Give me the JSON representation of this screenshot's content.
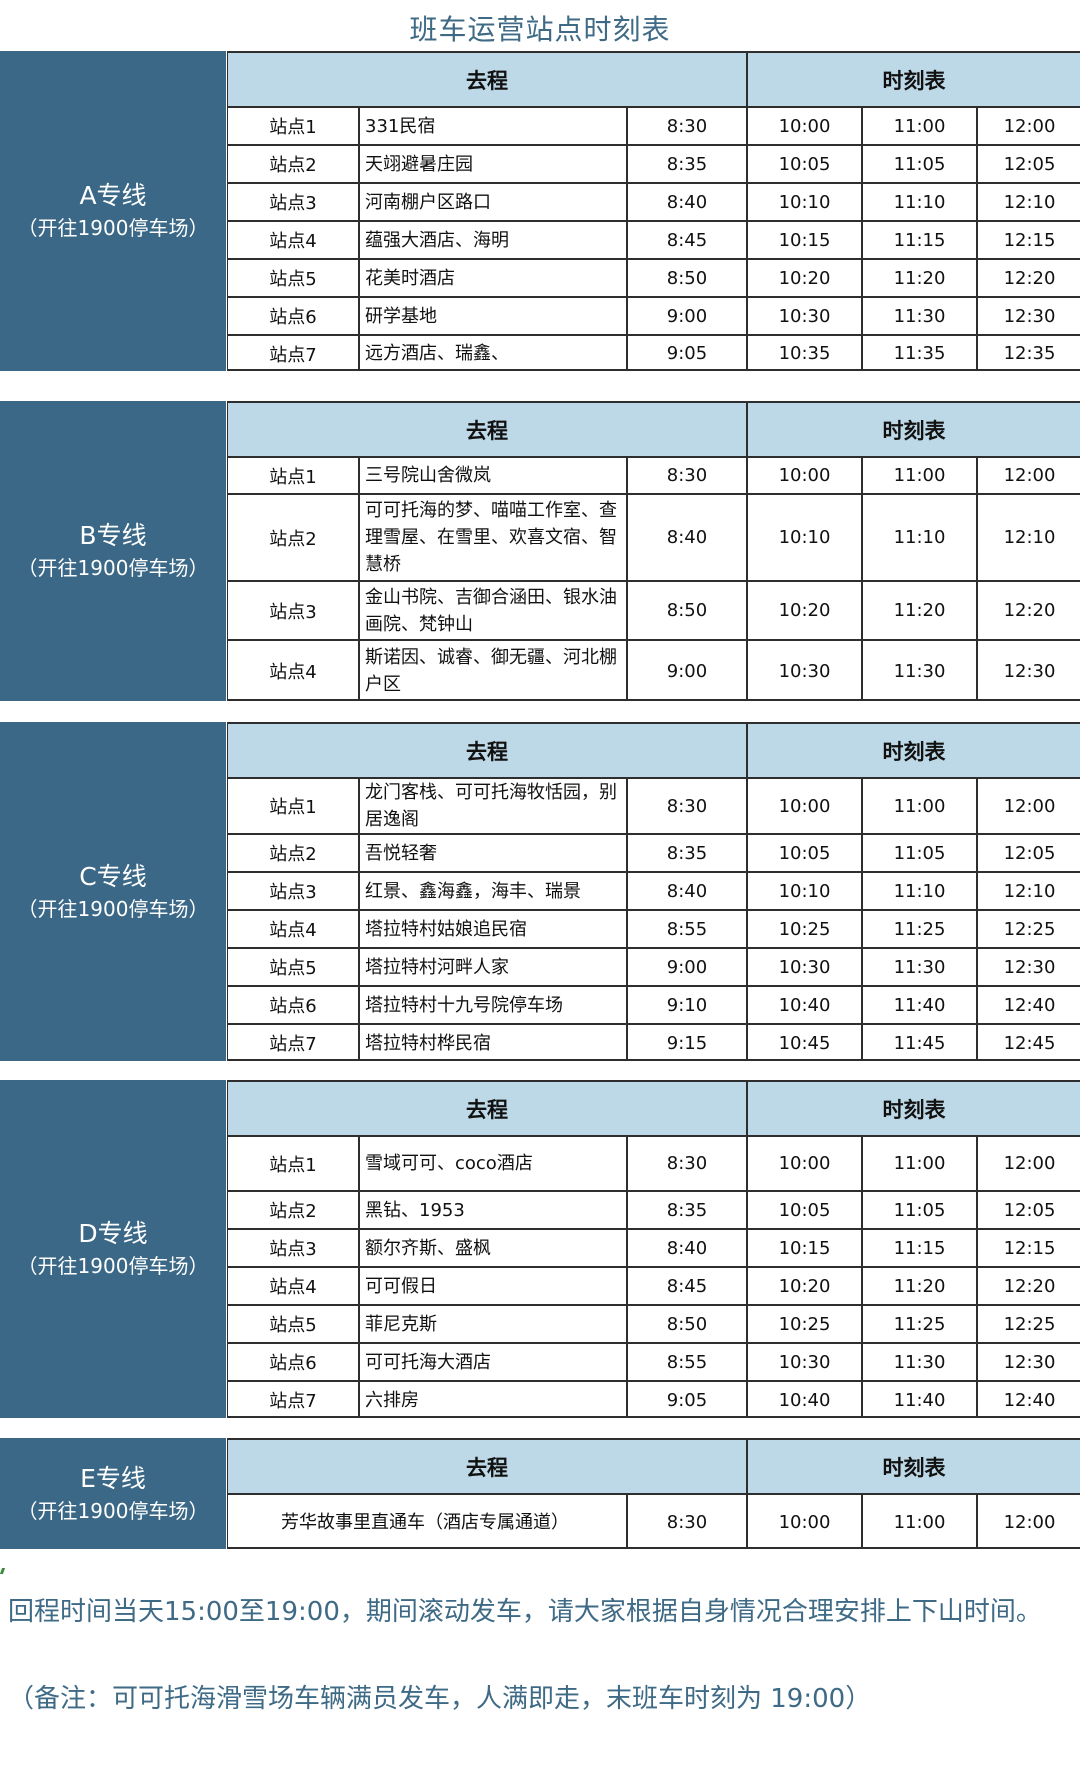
{
  "title": "班车运营站点时刻表",
  "header": {
    "route": "去程",
    "schedule": "时刻表"
  },
  "colors": {
    "panel": "#3b6886",
    "header_bg": "#bdd8e6",
    "text_accent": "#3e6a86"
  },
  "lines": [
    {
      "name": "A专线",
      "sub": "（开往1900停车场）",
      "stops": [
        {
          "stop": "站点1",
          "place": "331民宿",
          "times": [
            "8:30",
            "10:00",
            "11:00",
            "12:00"
          ]
        },
        {
          "stop": "站点2",
          "place": "天翊避暑庄园",
          "times": [
            "8:35",
            "10:05",
            "11:05",
            "12:05"
          ]
        },
        {
          "stop": "站点3",
          "place": "河南棚户区路口",
          "times": [
            "8:40",
            "10:10",
            "11:10",
            "12:10"
          ]
        },
        {
          "stop": "站点4",
          "place": "蕴强大酒店、海明",
          "times": [
            "8:45",
            "10:15",
            "11:15",
            "12:15"
          ]
        },
        {
          "stop": "站点5",
          "place": "花美时酒店",
          "times": [
            "8:50",
            "10:20",
            "11:20",
            "12:20"
          ]
        },
        {
          "stop": "站点6",
          "place": "研学基地",
          "times": [
            "9:00",
            "10:30",
            "11:30",
            "12:30"
          ]
        },
        {
          "stop": "站点7",
          "place": "远方酒店、瑞鑫、",
          "times": [
            "9:05",
            "10:35",
            "11:35",
            "12:35"
          ]
        }
      ]
    },
    {
      "name": "B专线",
      "sub": "（开往1900停车场）",
      "stops": [
        {
          "stop": "站点1",
          "place": "三号院山舍微岚",
          "times": [
            "8:30",
            "10:00",
            "11:00",
            "12:00"
          ]
        },
        {
          "stop": "站点2",
          "place": "可可托海的梦、喵喵工作室、查理雪屋、在雪里、欢喜文宿、智慧桥",
          "times": [
            "8:40",
            "10:10",
            "11:10",
            "12:10"
          ]
        },
        {
          "stop": "站点3",
          "place": "金山书院、吉御合涵田、银水油画院、梵钟山",
          "times": [
            "8:50",
            "10:20",
            "11:20",
            "12:20"
          ]
        },
        {
          "stop": "站点4",
          "place": "斯诺因、诚睿、御无疆、河北棚户区",
          "times": [
            "9:00",
            "10:30",
            "11:30",
            "12:30"
          ]
        }
      ]
    },
    {
      "name": "C专线",
      "sub": "（开往1900停车场）",
      "stops": [
        {
          "stop": "站点1",
          "place": "龙门客栈、可可托海牧恬园，别居逸阁",
          "times": [
            "8:30",
            "10:00",
            "11:00",
            "12:00"
          ]
        },
        {
          "stop": "站点2",
          "place": "吾悦轻奢",
          "times": [
            "8:35",
            "10:05",
            "11:05",
            "12:05"
          ]
        },
        {
          "stop": "站点3",
          "place": "红景、鑫海鑫，海丰、瑞景",
          "times": [
            "8:40",
            "10:10",
            "11:10",
            "12:10"
          ]
        },
        {
          "stop": "站点4",
          "place": "塔拉特村姑娘追民宿",
          "times": [
            "8:55",
            "10:25",
            "11:25",
            "12:25"
          ]
        },
        {
          "stop": "站点5",
          "place": "塔拉特村河畔人家",
          "times": [
            "9:00",
            "10:30",
            "11:30",
            "12:30"
          ]
        },
        {
          "stop": "站点6",
          "place": "塔拉特村十九号院停车场",
          "times": [
            "9:10",
            "10:40",
            "11:40",
            "12:40"
          ]
        },
        {
          "stop": "站点7",
          "place": "塔拉特村桦民宿",
          "times": [
            "9:15",
            "10:45",
            "11:45",
            "12:45"
          ]
        }
      ]
    },
    {
      "name": "D专线",
      "sub": "（开往1900停车场）",
      "stops": [
        {
          "stop": "站点1",
          "place": "雪域可可、coco酒店",
          "times": [
            "8:30",
            "10:00",
            "11:00",
            "12:00"
          ]
        },
        {
          "stop": "站点2",
          "place": "黑钻、1953",
          "times": [
            "8:35",
            "10:05",
            "11:05",
            "12:05"
          ]
        },
        {
          "stop": "站点3",
          "place": "额尔齐斯、盛枫",
          "times": [
            "8:40",
            "10:15",
            "11:15",
            "12:15"
          ]
        },
        {
          "stop": "站点4",
          "place": "可可假日",
          "times": [
            "8:45",
            "10:20",
            "11:20",
            "12:20"
          ]
        },
        {
          "stop": "站点5",
          "place": "菲尼克斯",
          "times": [
            "8:50",
            "10:25",
            "11:25",
            "12:25"
          ]
        },
        {
          "stop": "站点6",
          "place": "可可托海大酒店",
          "times": [
            "8:55",
            "10:30",
            "11:30",
            "12:30"
          ]
        },
        {
          "stop": "站点7",
          "place": "六排房",
          "times": [
            "9:05",
            "10:40",
            "11:40",
            "12:40"
          ]
        }
      ]
    },
    {
      "name": "E专线",
      "sub": "（开往1900停车场）",
      "stops": [
        {
          "place": "芳华故事里直通车（酒店专属通道）",
          "times": [
            "8:30",
            "10:00",
            "11:00",
            "12:00"
          ]
        }
      ]
    }
  ],
  "footer": {
    "line1": " 回程时间当天15:00至19:00，期间滚动发车，请大家根据自身情况合理安排上下山时间。",
    "line2": "（备注：可可托海滑雪场车辆满员发车，人满即走，末班车时刻为 19:00）"
  }
}
